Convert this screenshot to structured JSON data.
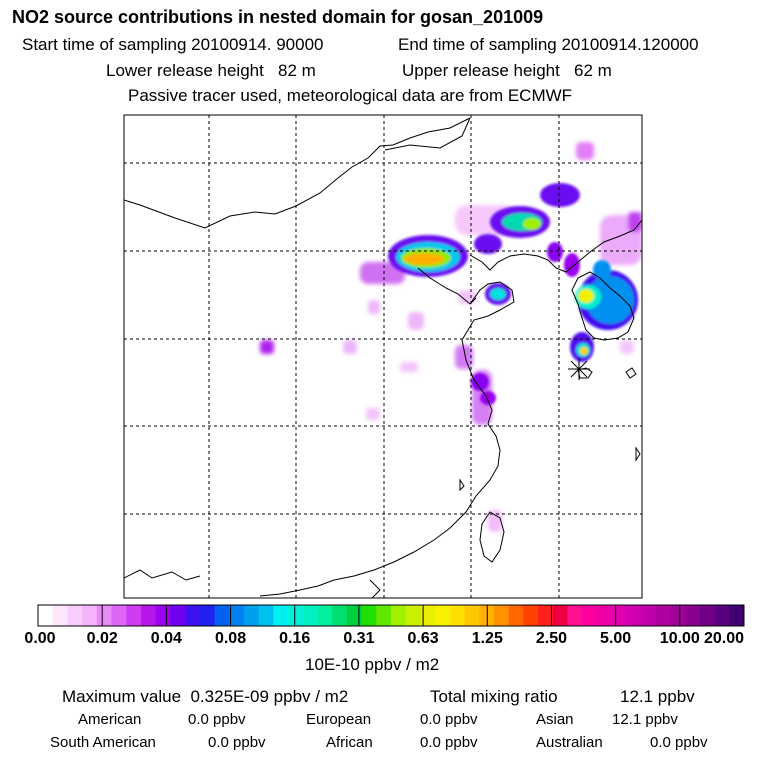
{
  "header": {
    "title": "NO2 source contributions in nested domain for gosan_201009",
    "start_sampling": "Start time of sampling 20100914. 90000",
    "end_sampling": "End time of sampling 20100914.120000",
    "lower_release": "Lower release height   82 m",
    "upper_release": "Upper release height   62 m",
    "tracer_note": "Passive tracer used, meteorological data are from ECMWF"
  },
  "colorbar": {
    "tick_labels": [
      "0.00",
      "0.02",
      "0.04",
      "0.08",
      "0.16",
      "0.31",
      "0.63",
      "1.25",
      "2.50",
      "5.00",
      "10.00",
      "20.00"
    ],
    "unit": "10E-10 ppbv / m2",
    "colors": [
      "#ffffff",
      "#fce6fe",
      "#f8cdfd",
      "#f3b4fb",
      "#e98af9",
      "#de66f5",
      "#cf3df1",
      "#b815ed",
      "#9b00f0",
      "#6f00f0",
      "#3f10f0",
      "#2020f0",
      "#0060f0",
      "#0080f0",
      "#00a0f0",
      "#00c0f0",
      "#00f0f0",
      "#00f0d8",
      "#00f0c0",
      "#00f0a0",
      "#00e070",
      "#00d040",
      "#20e000",
      "#60e800",
      "#a0f000",
      "#c8f000",
      "#e8f000",
      "#f8f000",
      "#ffe000",
      "#ffc800",
      "#ffb000",
      "#ff9000",
      "#ff6800",
      "#ff4000",
      "#ff2020",
      "#f00040",
      "#ff1090",
      "#ff00a0",
      "#f000a8",
      "#e000b0",
      "#d000b0",
      "#c000a8",
      "#b000a0",
      "#a00098",
      "#880090",
      "#700088",
      "#580080",
      "#400070"
    ]
  },
  "summary": {
    "max_label": "Maximum value  0.325E-09 ppbv / m2",
    "total_label": "Total mixing ratio",
    "total_value": "12.1 ppbv",
    "american_label": "American",
    "american_value": "0.0 ppbv",
    "european_label": "European",
    "european_value": "0.0 ppbv",
    "asian_label": "Asian",
    "asian_value": "12.1 ppbv",
    "south_american_label": "South American",
    "south_american_value": "0.0 ppbv",
    "african_label": "African",
    "african_value": "0.0 ppbv",
    "australian_label": "Australian",
    "australian_value": "0.0 ppbv"
  },
  "chart_data": {
    "type": "heatmap",
    "title": "NO2 source contributions in nested domain for gosan_201009",
    "colorbar_levels": [
      0.0,
      0.02,
      0.04,
      0.08,
      0.16,
      0.31,
      0.63,
      1.25,
      2.5,
      5.0,
      10.0,
      20.0
    ],
    "colorbar_unit": "10E-10 ppbv / m2",
    "max_value_ppbv_per_m2": 3.25e-10,
    "total_mixing_ratio_ppbv": 12.1,
    "receptor": "gosan",
    "grid": true
  }
}
